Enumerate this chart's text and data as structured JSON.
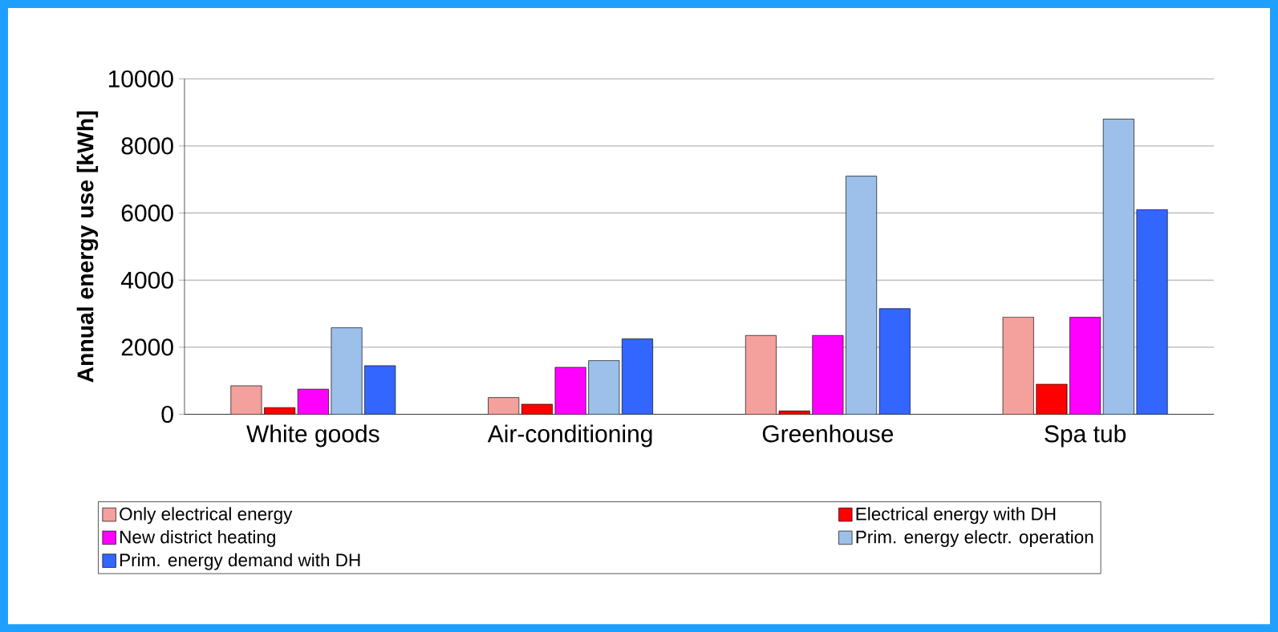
{
  "chart_data": {
    "type": "bar",
    "ylabel": "Annual energy use [kWh]",
    "categories": [
      "White goods",
      "Air-conditioning",
      "Greenhouse",
      "Spa tub"
    ],
    "series": [
      {
        "name": "Only electrical energy",
        "color": "#f4a09c",
        "values": [
          850,
          500,
          2350,
          2900
        ]
      },
      {
        "name": "Electrical energy with DH",
        "color": "#ff0000",
        "values": [
          200,
          300,
          100,
          900
        ]
      },
      {
        "name": "New district heating",
        "color": "#ff00ff",
        "values": [
          750,
          1400,
          2350,
          2900
        ]
      },
      {
        "name": "Prim. energy electr. operation",
        "color": "#9cc0ea",
        "values": [
          2580,
          1600,
          7100,
          8800
        ]
      },
      {
        "name": "Prim. energy demand with DH",
        "color": "#3366ff",
        "values": [
          1450,
          2250,
          3150,
          6100
        ]
      }
    ],
    "ylim": [
      0,
      10000
    ],
    "yticks": [
      0,
      2000,
      4000,
      6000,
      8000,
      10000
    ],
    "grid": "y",
    "legend": "bottom"
  }
}
